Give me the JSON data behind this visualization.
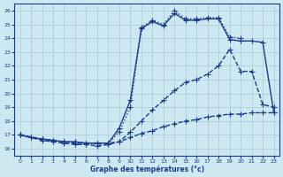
{
  "xlabel": "Graphe des températures (°c)",
  "ylabel": "",
  "bg_color": "#cde8f0",
  "line_color": "#1a3a8c",
  "grid_color": "#a8ccd8",
  "x_ticks": [
    0,
    1,
    2,
    3,
    4,
    5,
    6,
    7,
    8,
    9,
    10,
    11,
    12,
    13,
    14,
    15,
    16,
    17,
    18,
    19,
    20,
    21,
    22,
    23
  ],
  "y_ticks": [
    16,
    17,
    18,
    19,
    20,
    21,
    22,
    23,
    24,
    25,
    26
  ],
  "xlim": [
    -0.5,
    23.5
  ],
  "ylim": [
    15.5,
    26.5
  ],
  "series": [
    {
      "x": [
        0,
        1,
        2,
        3,
        4,
        5,
        6,
        7,
        8,
        9,
        10,
        11,
        12,
        13,
        14,
        15,
        16,
        17,
        18,
        19,
        20
      ],
      "y": [
        17.0,
        16.8,
        16.7,
        16.6,
        16.5,
        16.5,
        16.4,
        16.4,
        16.4,
        17.2,
        19.0,
        24.8,
        25.3,
        25.0,
        26.0,
        25.4,
        25.4,
        25.5,
        25.5,
        24.1,
        24.0
      ],
      "style": ":",
      "marker": "+",
      "lw": 1.0,
      "markersize": 4
    },
    {
      "x": [
        0,
        1,
        2,
        3,
        4,
        5,
        6,
        7,
        8,
        9,
        10,
        11,
        12,
        13,
        14,
        15,
        16,
        17,
        18,
        19,
        20,
        21,
        22,
        23
      ],
      "y": [
        17.0,
        16.8,
        16.7,
        16.6,
        16.5,
        16.5,
        16.4,
        16.4,
        16.4,
        17.5,
        19.5,
        24.7,
        25.2,
        24.9,
        25.8,
        25.3,
        25.3,
        25.4,
        25.4,
        23.9,
        23.8,
        23.8,
        23.7,
        18.6
      ],
      "style": "-",
      "marker": "+",
      "lw": 1.0,
      "markersize": 4
    },
    {
      "x": [
        0,
        2,
        3,
        4,
        5,
        6,
        7,
        8,
        9,
        10,
        11,
        12,
        13,
        14,
        15,
        16,
        17,
        18,
        19,
        20,
        21,
        22,
        23
      ],
      "y": [
        17.0,
        16.7,
        16.6,
        16.5,
        16.4,
        16.4,
        16.4,
        16.4,
        16.5,
        17.2,
        18.0,
        18.8,
        19.5,
        20.2,
        20.8,
        21.0,
        21.4,
        22.0,
        23.2,
        21.6,
        21.6,
        19.2,
        19.0
      ],
      "style": "--",
      "marker": "+",
      "lw": 1.0,
      "markersize": 4
    },
    {
      "x": [
        0,
        1,
        2,
        3,
        4,
        5,
        6,
        7,
        8,
        9,
        10,
        11,
        12,
        13,
        14,
        15,
        16,
        17,
        18,
        19,
        20,
        21,
        22,
        23
      ],
      "y": [
        17.0,
        16.8,
        16.6,
        16.5,
        16.4,
        16.3,
        16.3,
        16.2,
        16.3,
        16.5,
        16.8,
        17.1,
        17.3,
        17.6,
        17.8,
        18.0,
        18.1,
        18.3,
        18.4,
        18.5,
        18.5,
        18.6,
        18.6,
        18.6
      ],
      "style": "--",
      "marker": "+",
      "lw": 1.0,
      "markersize": 4
    }
  ]
}
